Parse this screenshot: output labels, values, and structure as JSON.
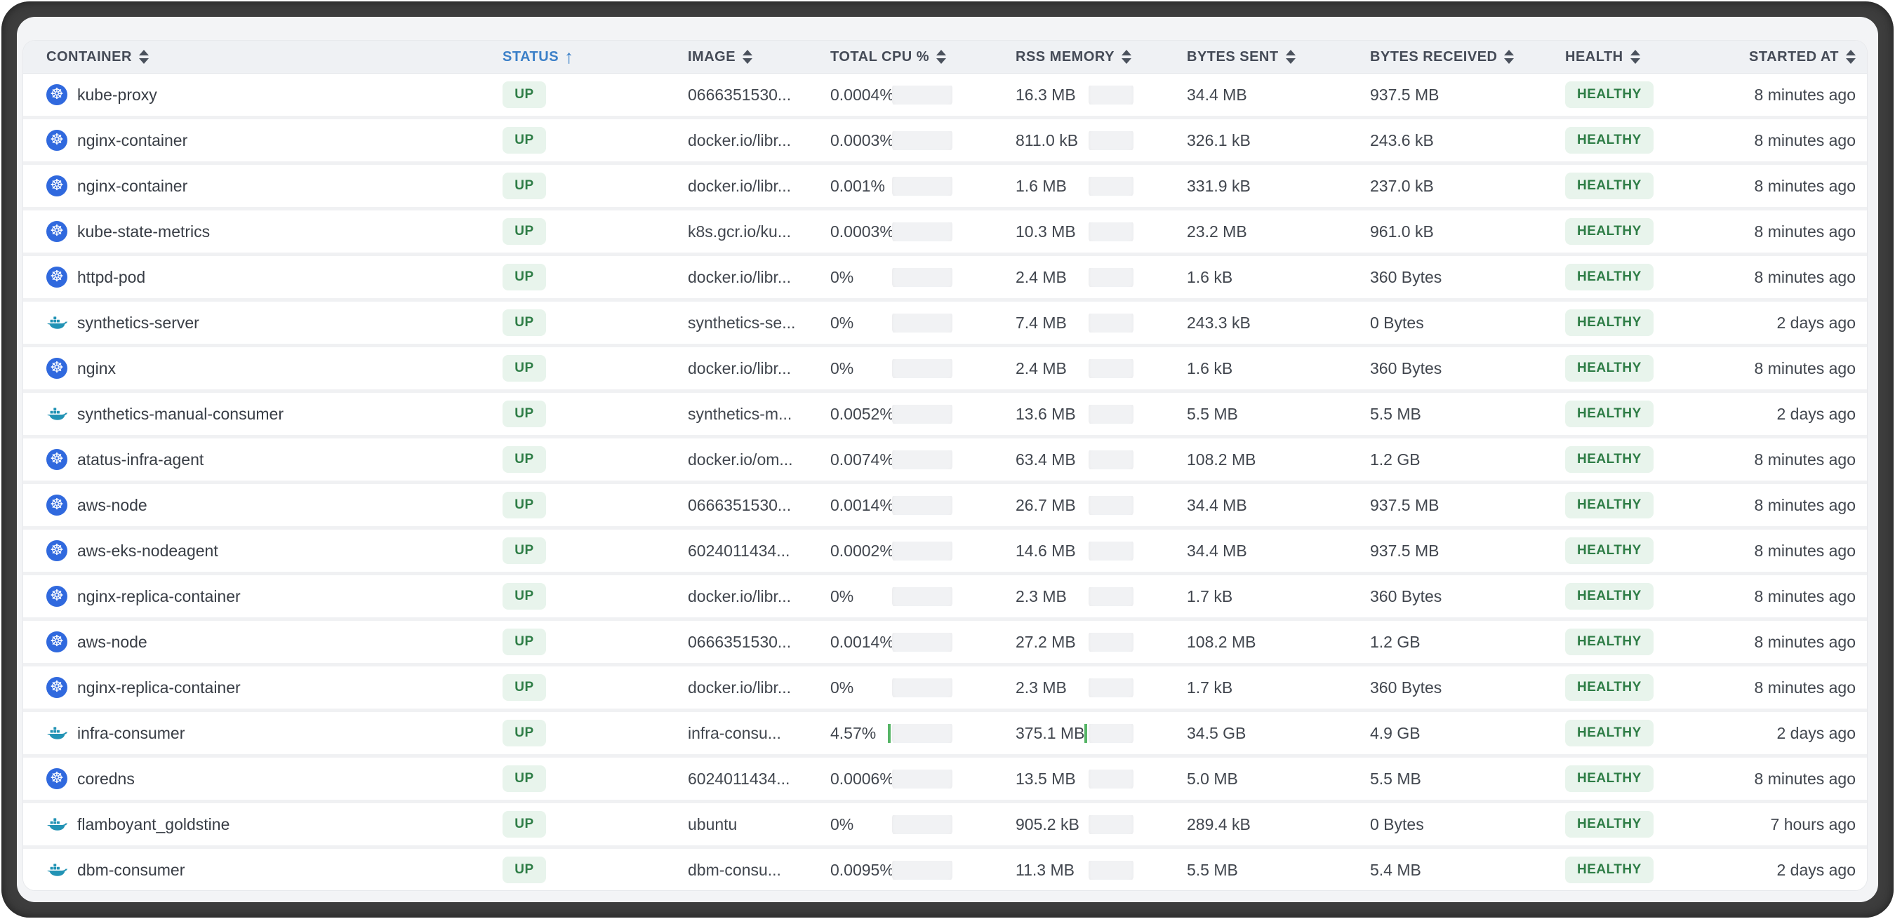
{
  "table": {
    "columns": [
      {
        "label": "CONTAINER"
      },
      {
        "label": "STATUS",
        "active_sort": "ascending"
      },
      {
        "label": "IMAGE"
      },
      {
        "label": "TOTAL CPU %"
      },
      {
        "label": "RSS MEMORY"
      },
      {
        "label": "BYTES SENT"
      },
      {
        "label": "BYTES RECEIVED"
      },
      {
        "label": "HEALTH"
      },
      {
        "label": "STARTED AT"
      }
    ],
    "rows": [
      {
        "container": "kube-proxy",
        "icon": "kubernetes",
        "status": "UP",
        "image": "0666351530...",
        "cpu": "0.0004%",
        "rss": "16.3 MB",
        "sent": "34.4 MB",
        "received": "937.5 MB",
        "health": "HEALTHY",
        "started": "8 minutes ago",
        "cpu_bar": false,
        "rss_bar": false
      },
      {
        "container": "nginx-container",
        "icon": "kubernetes",
        "status": "UP",
        "image": "docker.io/libr...",
        "cpu": "0.0003%",
        "rss": "811.0 kB",
        "sent": "326.1 kB",
        "received": "243.6 kB",
        "health": "HEALTHY",
        "started": "8 minutes ago",
        "cpu_bar": false,
        "rss_bar": false
      },
      {
        "container": "nginx-container",
        "icon": "kubernetes",
        "status": "UP",
        "image": "docker.io/libr...",
        "cpu": "0.001%",
        "rss": "1.6 MB",
        "sent": "331.9 kB",
        "received": "237.0 kB",
        "health": "HEALTHY",
        "started": "8 minutes ago",
        "cpu_bar": false,
        "rss_bar": false
      },
      {
        "container": "kube-state-metrics",
        "icon": "kubernetes",
        "status": "UP",
        "image": "k8s.gcr.io/ku...",
        "cpu": "0.0003%",
        "rss": "10.3 MB",
        "sent": "23.2 MB",
        "received": "961.0 kB",
        "health": "HEALTHY",
        "started": "8 minutes ago",
        "cpu_bar": false,
        "rss_bar": false
      },
      {
        "container": "httpd-pod",
        "icon": "kubernetes",
        "status": "UP",
        "image": "docker.io/libr...",
        "cpu": "0%",
        "rss": "2.4 MB",
        "sent": "1.6 kB",
        "received": "360 Bytes",
        "health": "HEALTHY",
        "started": "8 minutes ago",
        "cpu_bar": false,
        "rss_bar": false
      },
      {
        "container": "synthetics-server",
        "icon": "docker",
        "status": "UP",
        "image": "synthetics-se...",
        "cpu": "0%",
        "rss": "7.4 MB",
        "sent": "243.3 kB",
        "received": "0 Bytes",
        "health": "HEALTHY",
        "started": "2 days ago",
        "cpu_bar": false,
        "rss_bar": false
      },
      {
        "container": "nginx",
        "icon": "kubernetes",
        "status": "UP",
        "image": "docker.io/libr...",
        "cpu": "0%",
        "rss": "2.4 MB",
        "sent": "1.6 kB",
        "received": "360 Bytes",
        "health": "HEALTHY",
        "started": "8 minutes ago",
        "cpu_bar": false,
        "rss_bar": false
      },
      {
        "container": "synthetics-manual-consumer",
        "icon": "docker",
        "status": "UP",
        "image": "synthetics-m...",
        "cpu": "0.0052%",
        "rss": "13.6 MB",
        "sent": "5.5 MB",
        "received": "5.5 MB",
        "health": "HEALTHY",
        "started": "2 days ago",
        "cpu_bar": false,
        "rss_bar": false
      },
      {
        "container": "atatus-infra-agent",
        "icon": "kubernetes",
        "status": "UP",
        "image": "docker.io/om...",
        "cpu": "0.0074%",
        "rss": "63.4 MB",
        "sent": "108.2 MB",
        "received": "1.2 GB",
        "health": "HEALTHY",
        "started": "8 minutes ago",
        "cpu_bar": false,
        "rss_bar": false
      },
      {
        "container": "aws-node",
        "icon": "kubernetes",
        "status": "UP",
        "image": "0666351530...",
        "cpu": "0.0014%",
        "rss": "26.7 MB",
        "sent": "34.4 MB",
        "received": "937.5 MB",
        "health": "HEALTHY",
        "started": "8 minutes ago",
        "cpu_bar": false,
        "rss_bar": false
      },
      {
        "container": "aws-eks-nodeagent",
        "icon": "kubernetes",
        "status": "UP",
        "image": "6024011434...",
        "cpu": "0.0002%",
        "rss": "14.6 MB",
        "sent": "34.4 MB",
        "received": "937.5 MB",
        "health": "HEALTHY",
        "started": "8 minutes ago",
        "cpu_bar": false,
        "rss_bar": false
      },
      {
        "container": "nginx-replica-container",
        "icon": "kubernetes",
        "status": "UP",
        "image": "docker.io/libr...",
        "cpu": "0%",
        "rss": "2.3 MB",
        "sent": "1.7 kB",
        "received": "360 Bytes",
        "health": "HEALTHY",
        "started": "8 minutes ago",
        "cpu_bar": false,
        "rss_bar": false
      },
      {
        "container": "aws-node",
        "icon": "kubernetes",
        "status": "UP",
        "image": "0666351530...",
        "cpu": "0.0014%",
        "rss": "27.2 MB",
        "sent": "108.2 MB",
        "received": "1.2 GB",
        "health": "HEALTHY",
        "started": "8 minutes ago",
        "cpu_bar": false,
        "rss_bar": false
      },
      {
        "container": "nginx-replica-container",
        "icon": "kubernetes",
        "status": "UP",
        "image": "docker.io/libr...",
        "cpu": "0%",
        "rss": "2.3 MB",
        "sent": "1.7 kB",
        "received": "360 Bytes",
        "health": "HEALTHY",
        "started": "8 minutes ago",
        "cpu_bar": false,
        "rss_bar": false
      },
      {
        "container": "infra-consumer",
        "icon": "docker",
        "status": "UP",
        "image": "infra-consu...",
        "cpu": "4.57%",
        "rss": "375.1 MB",
        "sent": "34.5 GB",
        "received": "4.9 GB",
        "health": "HEALTHY",
        "started": "2 days ago",
        "cpu_bar": true,
        "rss_bar": true
      },
      {
        "container": "coredns",
        "icon": "kubernetes",
        "status": "UP",
        "image": "6024011434...",
        "cpu": "0.0006%",
        "rss": "13.5 MB",
        "sent": "5.0 MB",
        "received": "5.5 MB",
        "health": "HEALTHY",
        "started": "8 minutes ago",
        "cpu_bar": false,
        "rss_bar": false
      },
      {
        "container": "flamboyant_goldstine",
        "icon": "docker",
        "status": "UP",
        "image": "ubuntu",
        "cpu": "0%",
        "rss": "905.2 kB",
        "sent": "289.4 kB",
        "received": "0 Bytes",
        "health": "HEALTHY",
        "started": "7 hours ago",
        "cpu_bar": false,
        "rss_bar": false
      },
      {
        "container": "dbm-consumer",
        "icon": "docker",
        "status": "UP",
        "image": "dbm-consu...",
        "cpu": "0.0095%",
        "rss": "11.3 MB",
        "sent": "5.5 MB",
        "received": "5.4 MB",
        "health": "HEALTHY",
        "started": "2 days ago",
        "cpu_bar": false,
        "rss_bar": false
      }
    ]
  },
  "colors": {
    "accent_blue": "#3c80c8",
    "badge_green_text": "#2e7d46",
    "badge_green_bg": "#e8f4ec",
    "kubernetes_blue": "#3069de",
    "docker_teal": "#2293b5",
    "sparkline_green": "#55b465",
    "frame_dark": "#3d3d3d"
  }
}
